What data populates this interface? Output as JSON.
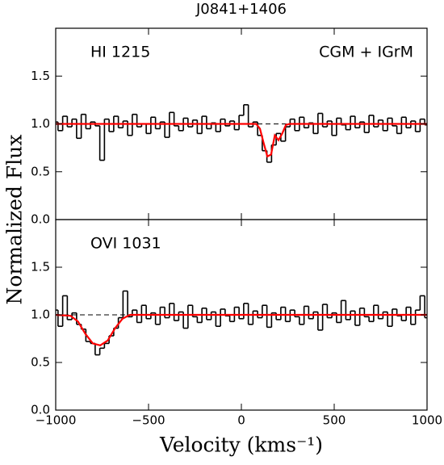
{
  "chart_data": {
    "type": "step",
    "title": "J0841+1406",
    "xlabel": "Velocity (kms⁻¹)",
    "ylabel": "Normalized Flux",
    "xlim": [
      -1000,
      1000
    ],
    "xticks": [
      {
        "value": -1000,
        "label": "−1000"
      },
      {
        "value": -500,
        "label": "−500"
      },
      0,
      500,
      1000
    ],
    "panels": [
      {
        "annotations": [
          "HI 1215",
          "CGM + IGrM"
        ],
        "ylim": [
          0,
          2.0
        ],
        "yticks": [
          {
            "value": 0,
            "label": "0.0"
          },
          {
            "value": 0.5,
            "label": "0.5"
          },
          {
            "value": 1,
            "label": "1.0"
          },
          {
            "value": 1.5,
            "label": "1.5"
          }
        ],
        "reference_line": 1.0,
        "x": [
          -1000,
          -975,
          -950,
          -925,
          -900,
          -875,
          -850,
          -825,
          -800,
          -775,
          -750,
          -725,
          -700,
          -675,
          -650,
          -625,
          -600,
          -575,
          -550,
          -525,
          -500,
          -475,
          -450,
          -425,
          -400,
          -375,
          -350,
          -325,
          -300,
          -275,
          -250,
          -225,
          -200,
          -175,
          -150,
          -125,
          -100,
          -75,
          -50,
          -25,
          0,
          25,
          50,
          75,
          100,
          125,
          150,
          175,
          200,
          225,
          250,
          275,
          300,
          325,
          350,
          375,
          400,
          425,
          450,
          475,
          500,
          525,
          550,
          575,
          600,
          625,
          650,
          675,
          700,
          725,
          750,
          775,
          800,
          825,
          850,
          875,
          900,
          925,
          950,
          975,
          1000
        ],
        "series": [
          {
            "color": "#000000",
            "values": [
              1.02,
              0.93,
              1.08,
              0.97,
              1.05,
              0.85,
              1.1,
              0.95,
              1.02,
              0.98,
              0.62,
              1.05,
              0.92,
              1.08,
              0.96,
              1.03,
              0.88,
              1.1,
              0.97,
              1.0,
              0.9,
              1.07,
              0.95,
              1.02,
              0.86,
              1.12,
              0.98,
              0.93,
              1.06,
              0.97,
              1.04,
              0.9,
              1.08,
              0.95,
              1.01,
              0.92,
              1.05,
              0.98,
              1.03,
              0.94,
              1.09,
              1.2,
              0.97,
              1.02,
              0.88,
              0.72,
              0.6,
              0.78,
              0.9,
              0.82,
              0.97,
              1.05,
              0.93,
              1.07,
              0.96,
              1.01,
              0.9,
              1.11,
              0.97,
              1.03,
              0.88,
              1.06,
              0.99,
              0.94,
              1.08,
              0.96,
              1.02,
              0.91,
              1.09,
              0.97,
              1.04,
              0.93,
              1.06,
              0.98,
              0.9,
              1.07,
              0.96,
              1.03,
              0.92,
              1.05,
              0.99
            ]
          },
          {
            "color": "#ff0000",
            "x": [
              -1000,
              80,
              100,
              120,
              140,
              160,
              180,
              200,
              220,
              240,
              260,
              1000
            ],
            "values": [
              1,
              1,
              0.95,
              0.8,
              0.66,
              0.68,
              0.88,
              0.83,
              0.9,
              0.99,
              1,
              1
            ]
          }
        ]
      },
      {
        "annotations": [
          "OVI 1031"
        ],
        "ylim": [
          0,
          2.0
        ],
        "yticks": [
          {
            "value": 0,
            "label": "0.0"
          },
          {
            "value": 0.5,
            "label": "0.5"
          },
          {
            "value": 1,
            "label": "1.0"
          },
          {
            "value": 1.5,
            "label": "1.5"
          }
        ],
        "reference_line": 1.0,
        "x": [
          -1000,
          -975,
          -950,
          -925,
          -900,
          -875,
          -850,
          -825,
          -800,
          -775,
          -750,
          -725,
          -700,
          -675,
          -650,
          -625,
          -600,
          -575,
          -550,
          -525,
          -500,
          -475,
          -450,
          -425,
          -400,
          -375,
          -350,
          -325,
          -300,
          -275,
          -250,
          -225,
          -200,
          -175,
          -150,
          -125,
          -100,
          -75,
          -50,
          -25,
          0,
          25,
          50,
          75,
          100,
          125,
          150,
          175,
          200,
          225,
          250,
          275,
          300,
          325,
          350,
          375,
          400,
          425,
          450,
          475,
          500,
          525,
          550,
          575,
          600,
          625,
          650,
          675,
          700,
          725,
          750,
          775,
          800,
          825,
          850,
          875,
          900,
          925,
          950,
          975,
          1000
        ],
        "series": [
          {
            "color": "#000000",
            "values": [
              1.05,
              0.88,
              1.2,
              0.95,
              1.02,
              0.9,
              0.85,
              0.72,
              0.7,
              0.58,
              0.65,
              0.7,
              0.78,
              0.86,
              0.97,
              1.25,
              0.98,
              1.05,
              0.92,
              1.1,
              0.96,
              1.02,
              0.9,
              1.08,
              0.97,
              1.12,
              0.94,
              1.03,
              0.86,
              1.1,
              0.98,
              0.92,
              1.07,
              0.95,
              1.03,
              0.88,
              1.06,
              0.99,
              0.93,
              1.08,
              0.96,
              1.12,
              0.9,
              1.04,
              0.97,
              1.1,
              0.87,
              1.02,
              0.95,
              1.08,
              0.93,
              1.05,
              0.98,
              0.9,
              1.09,
              0.96,
              1.03,
              0.84,
              1.11,
              0.97,
              1.02,
              0.92,
              1.15,
              0.95,
              1.04,
              0.89,
              1.07,
              0.98,
              0.93,
              1.1,
              0.96,
              1.03,
              0.88,
              1.06,
              0.99,
              0.94,
              1.08,
              0.9,
              1.05,
              1.2,
              0.97
            ]
          },
          {
            "color": "#ff0000",
            "x": [
              -1000,
              -920,
              -880,
              -840,
              -800,
              -760,
              -720,
              -680,
              -640,
              -600,
              1000
            ],
            "values": [
              1,
              0.99,
              0.93,
              0.8,
              0.7,
              0.68,
              0.73,
              0.86,
              0.96,
              1,
              1
            ]
          }
        ]
      }
    ]
  }
}
